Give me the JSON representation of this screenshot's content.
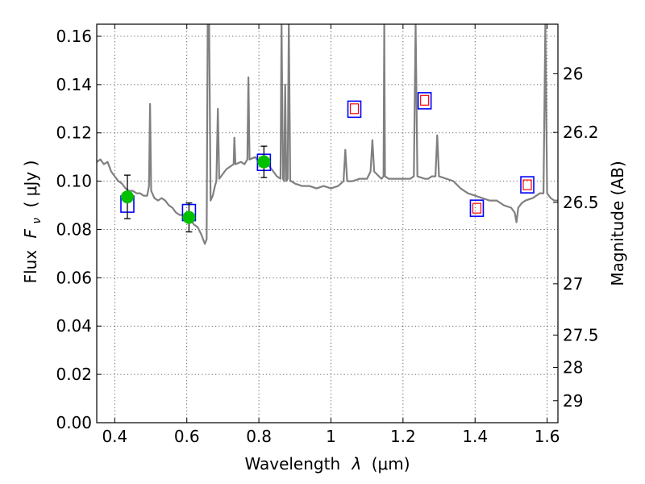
{
  "chart_data": {
    "type": "line",
    "xlabel_text": "Wavelength",
    "xlabel_symbol": "λ",
    "xlabel_unit": "(μm)",
    "ylabel_prefix": "Flux",
    "ylabel_symbol": "F",
    "ylabel_subscript": "ν",
    "ylabel_unit": "( μJy )",
    "y2label": "Magnitude (AB)",
    "xlim": [
      0.35,
      1.63
    ],
    "ylim": [
      0.0,
      0.165
    ],
    "grid": true,
    "x_ticks": [
      0.4,
      0.6,
      0.8,
      1.0,
      1.2,
      1.4,
      1.6
    ],
    "x_tick_labels": [
      "0.4",
      "0.6",
      "0.8",
      "1",
      "1.2",
      "1.4",
      "1.6"
    ],
    "y_ticks": [
      0.0,
      0.02,
      0.04,
      0.06,
      0.08,
      0.1,
      0.12,
      0.14,
      0.16
    ],
    "y_tick_labels": [
      "0.00",
      "0.02",
      "0.04",
      "0.06",
      "0.08",
      "0.10",
      "0.12",
      "0.14",
      "0.16"
    ],
    "y2_ticks": [
      {
        "flux": 0.1445,
        "label": "26"
      },
      {
        "flux": 0.1202,
        "label": "26.2"
      },
      {
        "flux": 0.0912,
        "label": "26.5"
      },
      {
        "flux": 0.0575,
        "label": "27"
      },
      {
        "flux": 0.0363,
        "label": "27.5"
      },
      {
        "flux": 0.0229,
        "label": "28"
      },
      {
        "flux": 0.0091,
        "label": "29"
      }
    ],
    "series": [
      {
        "kind": "spectrum",
        "color": "#808080",
        "points": [
          [
            0.35,
            0.108
          ],
          [
            0.36,
            0.109
          ],
          [
            0.37,
            0.107
          ],
          [
            0.38,
            0.108
          ],
          [
            0.39,
            0.104
          ],
          [
            0.4,
            0.102
          ],
          [
            0.41,
            0.1
          ],
          [
            0.42,
            0.099
          ],
          [
            0.43,
            0.097
          ],
          [
            0.44,
            0.096
          ],
          [
            0.45,
            0.096
          ],
          [
            0.46,
            0.095
          ],
          [
            0.47,
            0.095
          ],
          [
            0.48,
            0.094
          ],
          [
            0.49,
            0.094
          ],
          [
            0.495,
            0.098
          ],
          [
            0.498,
            0.132
          ],
          [
            0.501,
            0.096
          ],
          [
            0.51,
            0.093
          ],
          [
            0.52,
            0.092
          ],
          [
            0.53,
            0.093
          ],
          [
            0.54,
            0.092
          ],
          [
            0.55,
            0.09
          ],
          [
            0.56,
            0.089
          ],
          [
            0.57,
            0.087
          ],
          [
            0.58,
            0.086
          ],
          [
            0.59,
            0.086
          ],
          [
            0.6,
            0.085
          ],
          [
            0.61,
            0.084
          ],
          [
            0.62,
            0.082
          ],
          [
            0.63,
            0.081
          ],
          [
            0.64,
            0.078
          ],
          [
            0.65,
            0.074
          ],
          [
            0.655,
            0.076
          ],
          [
            0.658,
            0.165
          ],
          [
            0.662,
            0.165
          ],
          [
            0.666,
            0.092
          ],
          [
            0.672,
            0.094
          ],
          [
            0.678,
            0.098
          ],
          [
            0.682,
            0.1
          ],
          [
            0.686,
            0.13
          ],
          [
            0.69,
            0.101
          ],
          [
            0.7,
            0.103
          ],
          [
            0.71,
            0.105
          ],
          [
            0.72,
            0.106
          ],
          [
            0.73,
            0.107
          ],
          [
            0.732,
            0.118
          ],
          [
            0.735,
            0.107
          ],
          [
            0.75,
            0.108
          ],
          [
            0.76,
            0.107
          ],
          [
            0.768,
            0.109
          ],
          [
            0.771,
            0.143
          ],
          [
            0.774,
            0.109
          ],
          [
            0.79,
            0.11
          ],
          [
            0.8,
            0.108
          ],
          [
            0.81,
            0.108
          ],
          [
            0.82,
            0.107
          ],
          [
            0.83,
            0.106
          ],
          [
            0.84,
            0.104
          ],
          [
            0.85,
            0.102
          ],
          [
            0.86,
            0.101
          ],
          [
            0.863,
            0.165
          ],
          [
            0.867,
            0.101
          ],
          [
            0.87,
            0.1
          ],
          [
            0.873,
            0.14
          ],
          [
            0.876,
            0.1
          ],
          [
            0.88,
            0.101
          ],
          [
            0.883,
            0.165
          ],
          [
            0.887,
            0.1
          ],
          [
            0.89,
            0.1
          ],
          [
            0.9,
            0.099
          ],
          [
            0.92,
            0.098
          ],
          [
            0.94,
            0.098
          ],
          [
            0.96,
            0.097
          ],
          [
            0.98,
            0.098
          ],
          [
            1.0,
            0.097
          ],
          [
            1.02,
            0.098
          ],
          [
            1.035,
            0.1
          ],
          [
            1.04,
            0.113
          ],
          [
            1.045,
            0.1
          ],
          [
            1.06,
            0.1
          ],
          [
            1.08,
            0.101
          ],
          [
            1.1,
            0.101
          ],
          [
            1.11,
            0.104
          ],
          [
            1.115,
            0.117
          ],
          [
            1.12,
            0.104
          ],
          [
            1.14,
            0.101
          ],
          [
            1.146,
            0.102
          ],
          [
            1.148,
            0.165
          ],
          [
            1.15,
            0.102
          ],
          [
            1.16,
            0.101
          ],
          [
            1.18,
            0.101
          ],
          [
            1.2,
            0.101
          ],
          [
            1.22,
            0.101
          ],
          [
            1.23,
            0.102
          ],
          [
            1.235,
            0.165
          ],
          [
            1.24,
            0.102
          ],
          [
            1.26,
            0.101
          ],
          [
            1.27,
            0.101
          ],
          [
            1.28,
            0.102
          ],
          [
            1.29,
            0.102
          ],
          [
            1.295,
            0.119
          ],
          [
            1.3,
            0.102
          ],
          [
            1.32,
            0.101
          ],
          [
            1.34,
            0.1
          ],
          [
            1.36,
            0.097
          ],
          [
            1.38,
            0.095
          ],
          [
            1.4,
            0.094
          ],
          [
            1.42,
            0.093
          ],
          [
            1.44,
            0.092
          ],
          [
            1.46,
            0.092
          ],
          [
            1.48,
            0.09
          ],
          [
            1.5,
            0.089
          ],
          [
            1.51,
            0.087
          ],
          [
            1.515,
            0.083
          ],
          [
            1.52,
            0.089
          ],
          [
            1.53,
            0.091
          ],
          [
            1.54,
            0.092
          ],
          [
            1.56,
            0.093
          ],
          [
            1.58,
            0.095
          ],
          [
            1.59,
            0.095
          ],
          [
            1.595,
            0.165
          ],
          [
            1.6,
            0.095
          ],
          [
            1.61,
            0.093
          ],
          [
            1.62,
            0.092
          ],
          [
            1.63,
            0.092
          ]
        ]
      },
      {
        "kind": "observed",
        "color": "#00c000",
        "points": [
          {
            "x": 0.435,
            "y": 0.0935,
            "err": 0.009
          },
          {
            "x": 0.606,
            "y": 0.085,
            "err": 0.006
          },
          {
            "x": 0.814,
            "y": 0.108,
            "err": 0.0065
          }
        ]
      },
      {
        "kind": "model-band",
        "color": "#0000ff",
        "points": [
          {
            "x": 0.435,
            "y": 0.0905
          },
          {
            "x": 0.606,
            "y": 0.087
          },
          {
            "x": 0.814,
            "y": 0.1078
          },
          {
            "x": 1.065,
            "y": 0.1298
          },
          {
            "x": 1.26,
            "y": 0.1333
          },
          {
            "x": 1.405,
            "y": 0.0888
          },
          {
            "x": 1.545,
            "y": 0.0985
          }
        ]
      },
      {
        "kind": "prediction",
        "color": "#ff0000",
        "points": [
          {
            "x": 1.065,
            "y": 0.13
          },
          {
            "x": 1.26,
            "y": 0.1335
          },
          {
            "x": 1.405,
            "y": 0.0888
          },
          {
            "x": 1.545,
            "y": 0.0985
          }
        ]
      }
    ]
  }
}
